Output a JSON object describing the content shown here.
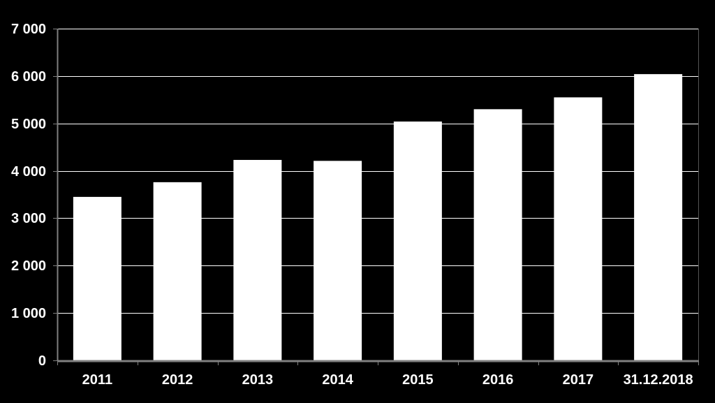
{
  "chart_data": {
    "type": "bar",
    "title": "",
    "xlabel": "",
    "ylabel": "",
    "categories": [
      "2011",
      "2012",
      "2013",
      "2014",
      "2015",
      "2016",
      "2017",
      "31.12.2018"
    ],
    "values": [
      3450,
      3760,
      4230,
      4210,
      5040,
      5300,
      5550,
      6040
    ],
    "ylim": [
      0,
      7000
    ],
    "y_ticks": [
      0,
      1000,
      2000,
      3000,
      4000,
      5000,
      6000,
      7000
    ],
    "y_tick_labels": [
      "0",
      "1 000",
      "2 000",
      "3 000",
      "4 000",
      "5 000",
      "6 000",
      "7 000"
    ],
    "grid": true,
    "legend": "none",
    "colors": {
      "background": "#000000",
      "bar": "#ffffff",
      "grid": "#ffffff",
      "axis": "#808080",
      "text": "#ffffff"
    }
  }
}
